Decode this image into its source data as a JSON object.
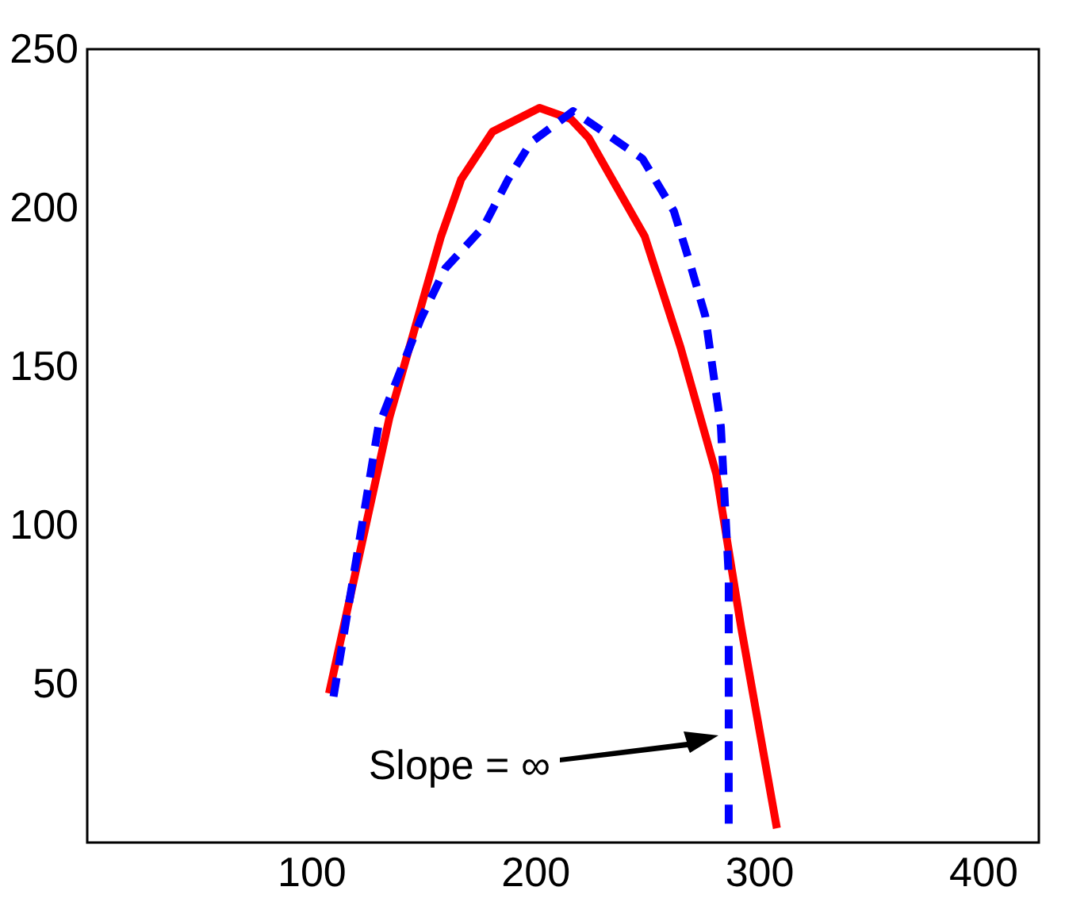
{
  "chart_data": {
    "type": "line",
    "xlim": [
      0,
      425
    ],
    "ylim": [
      0,
      250
    ],
    "xticks": [
      100,
      200,
      300,
      400
    ],
    "yticks": [
      50,
      100,
      150,
      200,
      250
    ],
    "grid": false,
    "legend": false,
    "marker": "none",
    "series": [
      {
        "color": "#ff0000",
        "line_style": "solid",
        "x": [
          108,
          135,
          158,
          167,
          181,
          202,
          216,
          224,
          249,
          265,
          281,
          292,
          308
        ],
        "values": [
          47,
          134,
          191,
          209,
          224,
          231.5,
          228,
          222,
          191,
          156,
          116,
          68,
          4.5
        ]
      },
      {
        "color": "#0000ff",
        "line_style": "dashed",
        "x": [
          110,
          130,
          149,
          160,
          177,
          188,
          198,
          217,
          248,
          262,
          269,
          276,
          283,
          286.5,
          286.5
        ],
        "values": [
          46,
          131,
          165,
          181,
          194,
          209,
          220.5,
          230.5,
          215.5,
          199,
          183,
          166,
          131,
          84,
          4.5
        ]
      }
    ],
    "annotations": [
      "Slope = ∞"
    ]
  }
}
